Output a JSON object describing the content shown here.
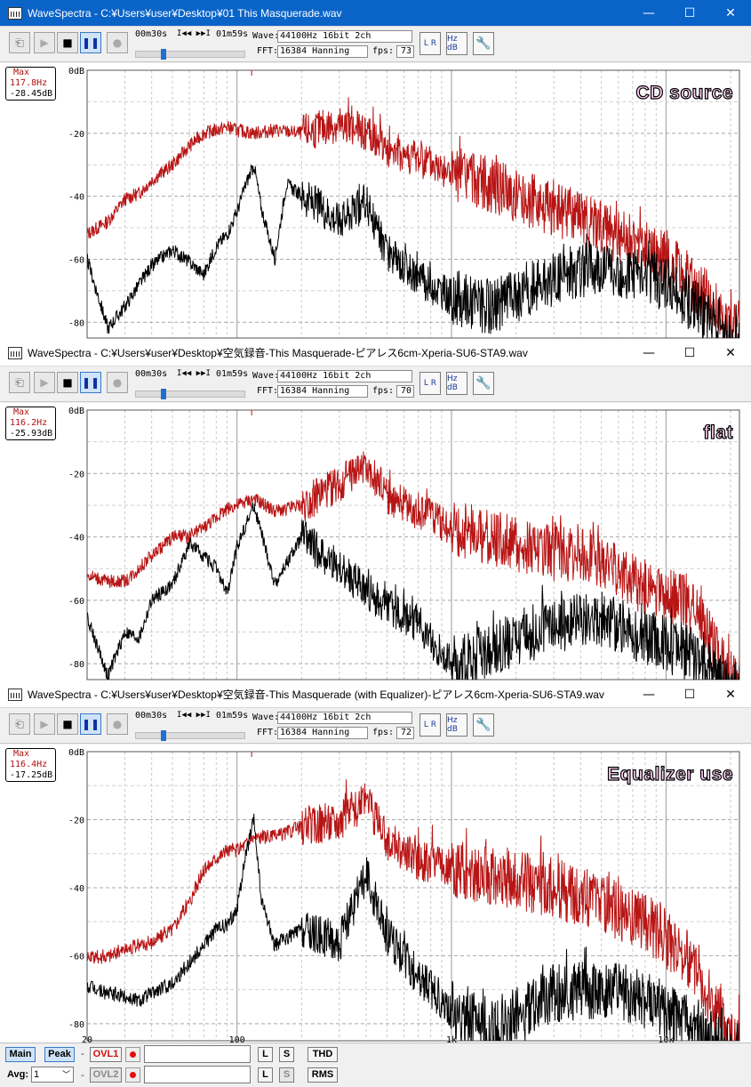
{
  "windows": [
    {
      "title": "WaveSpectra - C:¥Users¥user¥Desktop¥01 This Masquerade.wav",
      "active": true,
      "time_start": "00m30s",
      "time_end": "01m59s",
      "wave": "44100Hz 16bit 2ch",
      "fft": "16384 Hanning",
      "fps": "73",
      "max_label": "Max",
      "max_hz": "117.8Hz",
      "max_db": "-28.45dB",
      "overlay": "CD source"
    },
    {
      "title": "WaveSpectra - C:¥Users¥user¥Desktop¥空気録音-This Masquerade-ピアレス6cm-Xperia-SU6-STA9.wav",
      "active": false,
      "time_start": "00m30s",
      "time_end": "01m59s",
      "wave": "44100Hz 16bit 2ch",
      "fft": "16384 Hanning",
      "fps": "70",
      "max_label": "Max",
      "max_hz": "116.2Hz",
      "max_db": "-25.93dB",
      "overlay": "flat"
    },
    {
      "title": "WaveSpectra - C:¥Users¥user¥Desktop¥空気録音-This Masquerade (with Equalizer)-ピアレス6cm-Xperia-SU6-STA9.wav",
      "active": false,
      "time_start": "00m30s",
      "time_end": "01m59s",
      "wave": "44100Hz 16bit 2ch",
      "fft": "16384 Hanning",
      "fps": "72",
      "max_label": "Max",
      "max_hz": "116.4Hz",
      "max_db": "-17.25dB",
      "overlay": "Equalizer use"
    }
  ],
  "labels": {
    "wave": "Wave:",
    "fft": "FFT:",
    "fps": "fps:",
    "seek": "I◀◀ ▶▶I",
    "lr_icon": "L R",
    "hz_icon": "Hz dB",
    "minimize": "—",
    "maximize": "☐",
    "close": "✕"
  },
  "y_ticks": [
    "0dB",
    "-20",
    "-40",
    "-60",
    "-80"
  ],
  "x_ticks": [
    "20",
    "100",
    "1k",
    "10k"
  ],
  "bottom": {
    "main": "Main",
    "peak": "Peak",
    "dash": "-",
    "ovl1": "OVL1",
    "ovl2": "OVL2",
    "l": "L",
    "s": "S",
    "thd": "THD",
    "rms": "RMS",
    "avg_label": "Avg:",
    "avg_value": "1"
  },
  "colors": {
    "peak_trace": "#b81414",
    "main_trace": "#000000",
    "title_active": "#0a64c8",
    "overlay_fill": "#ffd0f4"
  },
  "chart_data": [
    {
      "type": "line",
      "x_scale": "log",
      "xlim": [
        20,
        22000
      ],
      "ylim": [
        -85,
        0
      ],
      "x_ticks": [
        20,
        100,
        1000,
        10000
      ],
      "y_ticks": [
        0,
        -20,
        -40,
        -60,
        -80
      ],
      "grid": true,
      "series": [
        {
          "color": "#b81414",
          "x": [
            20,
            25,
            30,
            35,
            40,
            50,
            60,
            70,
            80,
            90,
            100,
            120,
            150,
            200,
            300,
            400,
            500,
            700,
            1000,
            1500,
            2000,
            3000,
            5000,
            7000,
            10000,
            13000,
            16000,
            20000
          ],
          "y": [
            -52,
            -48,
            -41,
            -39,
            -35,
            -30,
            -24,
            -20,
            -19,
            -18,
            -19,
            -20,
            -19,
            -20,
            -17,
            -20,
            -25,
            -28,
            -33,
            -36,
            -40,
            -44,
            -50,
            -55,
            -60,
            -67,
            -73,
            -82
          ]
        },
        {
          "color": "#000000",
          "x": [
            20,
            25,
            30,
            35,
            40,
            50,
            60,
            70,
            80,
            90,
            100,
            110,
            120,
            130,
            150,
            170,
            200,
            250,
            300,
            400,
            500,
            700,
            1000,
            1500,
            2000,
            3000,
            5000,
            7000,
            10000,
            13000,
            16000,
            20000
          ],
          "y": [
            -60,
            -82,
            -75,
            -68,
            -62,
            -57,
            -61,
            -65,
            -56,
            -52,
            -45,
            -36,
            -30,
            -44,
            -60,
            -36,
            -40,
            -44,
            -48,
            -42,
            -58,
            -66,
            -72,
            -75,
            -72,
            -66,
            -62,
            -64,
            -68,
            -74,
            -80,
            -86
          ]
        }
      ]
    },
    {
      "type": "line",
      "x_scale": "log",
      "xlim": [
        20,
        22000
      ],
      "ylim": [
        -85,
        0
      ],
      "x_ticks": [
        20,
        100,
        1000,
        10000
      ],
      "y_ticks": [
        0,
        -20,
        -40,
        -60,
        -80
      ],
      "grid": true,
      "series": [
        {
          "color": "#b81414",
          "x": [
            20,
            25,
            30,
            35,
            40,
            50,
            60,
            70,
            80,
            90,
            100,
            120,
            150,
            200,
            300,
            400,
            500,
            700,
            1000,
            1500,
            2000,
            3000,
            5000,
            7000,
            10000,
            13000,
            16000,
            20000
          ],
          "y": [
            -52,
            -54,
            -54,
            -50,
            -46,
            -40,
            -40,
            -37,
            -34,
            -31,
            -30,
            -28,
            -32,
            -30,
            -23,
            -17,
            -27,
            -32,
            -37,
            -40,
            -42,
            -45,
            -47,
            -54,
            -58,
            -62,
            -72,
            -85
          ]
        },
        {
          "color": "#000000",
          "x": [
            20,
            25,
            30,
            35,
            40,
            50,
            60,
            70,
            80,
            90,
            100,
            110,
            120,
            150,
            200,
            300,
            400,
            500,
            700,
            1000,
            1500,
            2000,
            3000,
            5000,
            7000,
            10000,
            13000,
            16000,
            20000
          ],
          "y": [
            -65,
            -84,
            -70,
            -72,
            -60,
            -55,
            -42,
            -46,
            -50,
            -58,
            -43,
            -36,
            -30,
            -55,
            -40,
            -50,
            -57,
            -62,
            -68,
            -80,
            -76,
            -72,
            -68,
            -66,
            -70,
            -74,
            -77,
            -82,
            -88
          ]
        }
      ]
    },
    {
      "type": "line",
      "x_scale": "log",
      "xlim": [
        20,
        22000
      ],
      "ylim": [
        -85,
        0
      ],
      "x_ticks": [
        20,
        100,
        1000,
        10000
      ],
      "y_ticks": [
        0,
        -20,
        -40,
        -60,
        -80
      ],
      "grid": true,
      "series": [
        {
          "color": "#b81414",
          "x": [
            20,
            25,
            30,
            35,
            40,
            50,
            60,
            70,
            80,
            90,
            100,
            120,
            150,
            200,
            300,
            400,
            500,
            700,
            1000,
            1500,
            2000,
            3000,
            5000,
            7000,
            10000,
            13000,
            16000,
            20000
          ],
          "y": [
            -61,
            -60,
            -58,
            -57,
            -56,
            -52,
            -44,
            -35,
            -31,
            -29,
            -29,
            -25,
            -25,
            -22,
            -20,
            -15,
            -26,
            -32,
            -34,
            -36,
            -38,
            -40,
            -45,
            -48,
            -55,
            -62,
            -72,
            -85
          ]
        },
        {
          "color": "#000000",
          "x": [
            20,
            25,
            30,
            35,
            40,
            50,
            60,
            70,
            80,
            90,
            100,
            110,
            120,
            130,
            150,
            200,
            300,
            400,
            500,
            700,
            1000,
            1500,
            2000,
            3000,
            5000,
            7000,
            10000,
            13000,
            16000,
            20000
          ],
          "y": [
            -69,
            -71,
            -72,
            -73,
            -71,
            -68,
            -62,
            -57,
            -52,
            -51,
            -46,
            -30,
            -20,
            -44,
            -57,
            -52,
            -56,
            -36,
            -54,
            -66,
            -76,
            -82,
            -78,
            -71,
            -70,
            -72,
            -76,
            -80,
            -84,
            -88
          ]
        }
      ]
    }
  ]
}
